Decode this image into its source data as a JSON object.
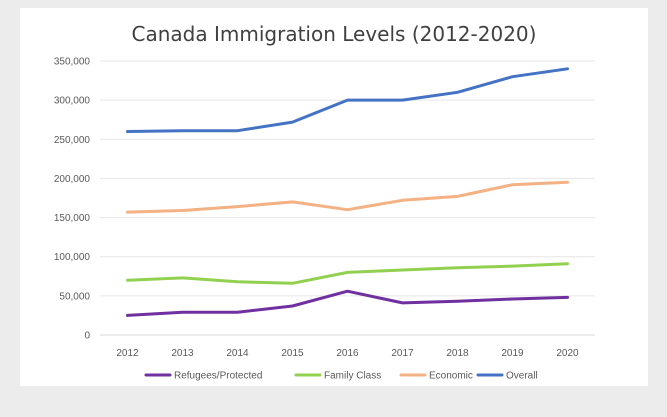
{
  "chart_data": {
    "type": "line",
    "title": "Canada Immigration Levels (2012-2020)",
    "xlabel": "",
    "ylabel": "",
    "categories": [
      "2012",
      "2013",
      "2014",
      "2015",
      "2016",
      "2017",
      "2018",
      "2019",
      "2020"
    ],
    "ylim": [
      0,
      350000
    ],
    "yticks": [
      0,
      50000,
      100000,
      150000,
      200000,
      250000,
      300000,
      350000
    ],
    "ytick_labels": [
      "0",
      "50,000",
      "100,000",
      "150,000",
      "200,000",
      "250,000",
      "300,000",
      "350,000"
    ],
    "grid": true,
    "legend_position": "bottom",
    "series": [
      {
        "name": "Refugees/Protected",
        "color": "#7030a0",
        "values": [
          25000,
          29000,
          29000,
          37000,
          56000,
          41000,
          43000,
          46000,
          48000
        ]
      },
      {
        "name": "Family Class",
        "color": "#92d050",
        "values": [
          70000,
          73000,
          68000,
          66000,
          80000,
          83000,
          86000,
          88000,
          91000
        ]
      },
      {
        "name": "Economic",
        "color": "#f4b183",
        "values": [
          157000,
          159000,
          164000,
          170000,
          160000,
          172000,
          177000,
          192000,
          195000
        ]
      },
      {
        "name": "Overall",
        "color": "#4472c4",
        "values": [
          260000,
          261000,
          261000,
          272000,
          300000,
          300000,
          310000,
          330000,
          340000
        ]
      }
    ]
  }
}
